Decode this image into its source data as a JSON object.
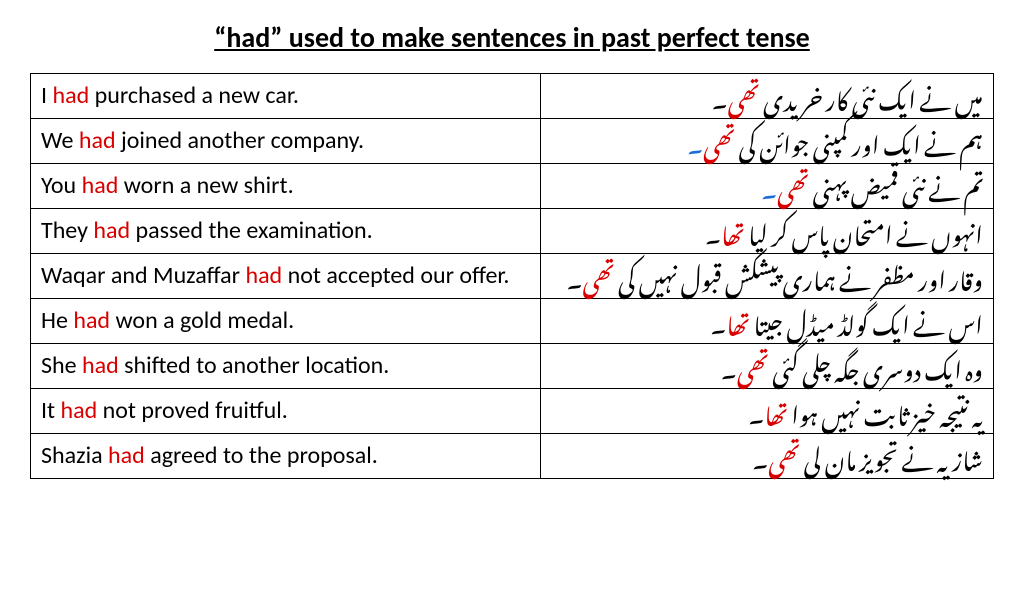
{
  "title": "“had” used to make sentences in past perfect tense",
  "styling": {
    "title_fontsize": 28,
    "cell_fontsize": 24,
    "highlight_color": "#d90000",
    "alt_end_color": "#1a6bd6",
    "border_color": "#000000",
    "background_color": "#ffffff",
    "text_color": "#000000",
    "en_col_width_pct": 53,
    "ur_col_width_pct": 47
  },
  "rows": [
    {
      "en_pre": "I ",
      "en_hl": "had",
      "en_post": " purchased a new car.",
      "ur_pre": "میں نے ایک نئی کار خریدی ",
      "ur_hl": "تھی",
      "ur_post": "۔"
    },
    {
      "en_pre": "We ",
      "en_hl": "had",
      "en_post": " joined another company.",
      "ur_pre": "ہم نے ایک اور کمپنی جوائن کی ",
      "ur_hl": "تھی",
      "ur_post": "۔"
    },
    {
      "en_pre": "You ",
      "en_hl": "had",
      "en_post": " worn a new shirt.",
      "ur_pre": "تم نے نئی قمیض پہنی ",
      "ur_hl": "تھی",
      "ur_post": "۔"
    },
    {
      "en_pre": "They ",
      "en_hl": "had",
      "en_post": " passed the examination.",
      "ur_pre": "انہوں نے امتحان پاس کر لیا ",
      "ur_hl": "تھا",
      "ur_post": "۔"
    },
    {
      "en_pre": "Waqar and Muzaffar ",
      "en_hl": "had",
      "en_post": " not accepted our offer.",
      "ur_pre": "وقار اور مظفر نے ہماری پیشکش قبول نہیں کی ",
      "ur_hl": "تھی",
      "ur_post": "۔"
    },
    {
      "en_pre": "He ",
      "en_hl": "had",
      "en_post": " won a gold medal.",
      "ur_pre": "اس نے ایک گولڈ میڈل جیتا ",
      "ur_hl": "تھا",
      "ur_post": "۔"
    },
    {
      "en_pre": "She ",
      "en_hl": "had",
      "en_post": " shifted to another location.",
      "ur_pre": "وہ ایک دوسری جگہ چلی گئی ",
      "ur_hl": "تھی",
      "ur_post": "۔"
    },
    {
      "en_pre": "It ",
      "en_hl": "had",
      "en_post": " not proved fruitful.",
      "ur_pre": "یہ نتیجہ خیز ثابت نہیں ہوا ",
      "ur_hl": "تھا",
      "ur_post": "۔"
    },
    {
      "en_pre": "Shazia ",
      "en_hl": "had",
      "en_post": " agreed to the proposal.",
      "ur_pre": "شازیہ نے تجویز مان لی ",
      "ur_hl": "تھی",
      "ur_post": "۔"
    }
  ]
}
